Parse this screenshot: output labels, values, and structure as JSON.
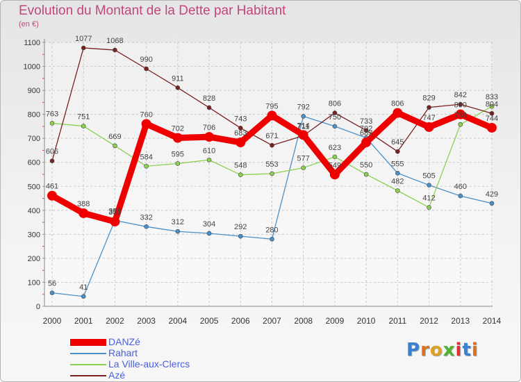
{
  "title": "Evolution du Montant de la Dette par Habitant",
  "unit": "(en €)",
  "logo": {
    "letters": [
      "P",
      "r",
      "o",
      "x",
      "i",
      "t",
      "i"
    ],
    "colors": [
      "#3a7fd0",
      "#e07020",
      "#e0a020",
      "#50b030",
      "#e03030",
      "#3a7fd0",
      "#e07020"
    ]
  },
  "chart_data": {
    "type": "line",
    "x": [
      "2000",
      "2001",
      "2002",
      "2003",
      "2004",
      "2005",
      "2006",
      "2007",
      "2008",
      "2009",
      "2010",
      "2011",
      "2012",
      "2013",
      "2014"
    ],
    "ylim": [
      0,
      1100
    ],
    "yticks": [
      0,
      100,
      200,
      300,
      400,
      500,
      600,
      700,
      800,
      900,
      1000,
      1100
    ],
    "grid": true,
    "legend_position": "bottom-left",
    "series": [
      {
        "name": "DANZé",
        "color": "#ee0000",
        "values": [
          461,
          388,
          353,
          760,
          702,
          706,
          683,
          795,
          714,
          549,
          683,
          806,
          747,
          800,
          744
        ]
      },
      {
        "name": "Rahart",
        "color": "#4a90c8",
        "values": [
          56,
          41,
          358,
          332,
          312,
          304,
          292,
          280,
          792,
          750,
          702,
          555,
          505,
          460,
          429
        ]
      },
      {
        "name": "La Ville-aux-Clercs",
        "color": "#8cd050",
        "values": [
          763,
          751,
          669,
          584,
          595,
          610,
          548,
          553,
          577,
          623,
          550,
          482,
          412,
          758,
          833
        ]
      },
      {
        "name": "Azé",
        "color": "#7a2020",
        "values": [
          606,
          1077,
          1068,
          990,
          911,
          828,
          743,
          671,
          711,
          806,
          733,
          645,
          829,
          842,
          804
        ]
      }
    ]
  }
}
